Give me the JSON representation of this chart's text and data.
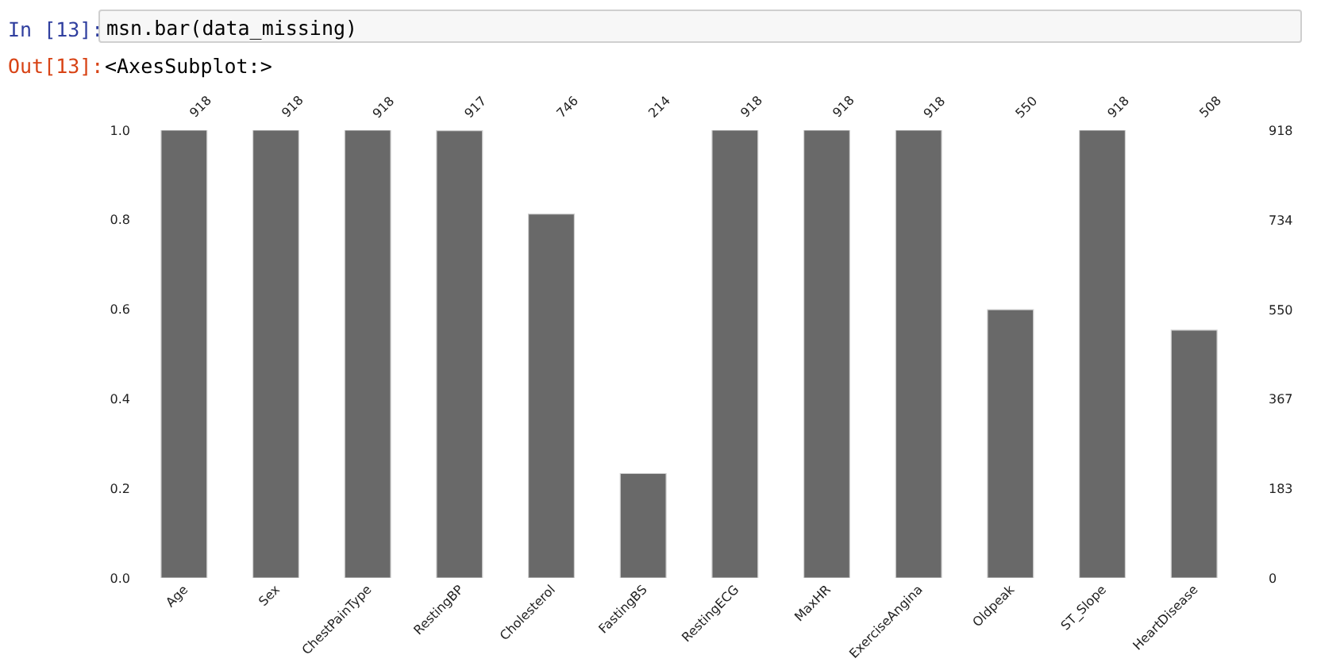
{
  "chart_data": {
    "type": "bar",
    "annotations": [
      "In [13]:",
      "msn.bar(data_missing)",
      "Out[13]:",
      "<AxesSubplot:>"
    ],
    "categories": [
      "Age",
      "Sex",
      "ChestPainType",
      "RestingBP",
      "Cholesterol",
      "FastingBS",
      "RestingECG",
      "MaxHR",
      "ExerciseAngina",
      "Oldpeak",
      "ST_Slope",
      "HeartDisease"
    ],
    "series": [
      {
        "color": "#696969",
        "axis": "y2",
        "values": [
          918,
          918,
          918,
          917,
          746,
          214,
          918,
          918,
          918,
          550,
          918,
          508
        ]
      }
    ],
    "data_labels": true,
    "ylim": [
      0,
      1
    ],
    "yticks": [
      {
        "value": 0,
        "label": "0.0"
      },
      0.2,
      0.4,
      0.6,
      0.8,
      {
        "value": 1,
        "label": "1.0"
      }
    ],
    "y2lim": [
      0,
      918
    ],
    "y2ticks": [
      0,
      183,
      367,
      550,
      734,
      918
    ]
  }
}
